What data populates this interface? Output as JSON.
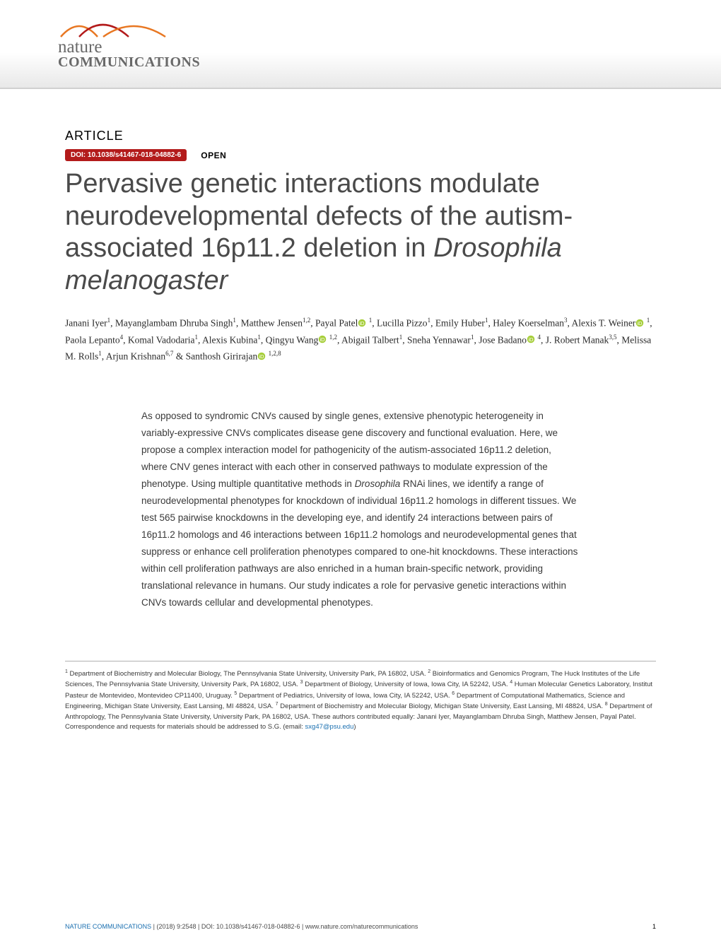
{
  "logo": {
    "line1": "nature",
    "line2": "COMMUNICATIONS"
  },
  "article_label": "ARTICLE",
  "doi_badge": "DOI: 10.1038/s41467-018-04882-6",
  "open_badge": "OPEN",
  "title_html": "Pervasive genetic interactions modulate neurodevelopmental defects of the autism-associated 16p11.2 deletion in <span class=\"italic\">Drosophila melanogaster</span>",
  "authors_html": "Janani Iyer<sup>1</sup>, Mayanglambam Dhruba Singh<sup>1</sup>, Matthew Jensen<sup>1,2</sup>, Payal Patel<svg class=\"orcid\" viewBox=\"0 0 16 16\"><circle cx=\"8\" cy=\"8\" r=\"7\" fill=\"#a6ce39\"/><text x=\"8\" y=\"12\" text-anchor=\"middle\" fill=\"#fff\" font-size=\"10\" font-family=\"Arial\">iD</text></svg> <sup>1</sup>, Lucilla Pizzo<sup>1</sup>, Emily Huber<sup>1</sup>, Haley Koerselman<sup>3</sup>, Alexis T. Weiner<svg class=\"orcid\" viewBox=\"0 0 16 16\"><circle cx=\"8\" cy=\"8\" r=\"7\" fill=\"#a6ce39\"/><text x=\"8\" y=\"12\" text-anchor=\"middle\" fill=\"#fff\" font-size=\"10\" font-family=\"Arial\">iD</text></svg> <sup>1</sup>, Paola Lepanto<sup>4</sup>, Komal Vadodaria<sup>1</sup>, Alexis Kubina<sup>1</sup>, Qingyu Wang<svg class=\"orcid\" viewBox=\"0 0 16 16\"><circle cx=\"8\" cy=\"8\" r=\"7\" fill=\"#a6ce39\"/><text x=\"8\" y=\"12\" text-anchor=\"middle\" fill=\"#fff\" font-size=\"10\" font-family=\"Arial\">iD</text></svg> <sup>1,2</sup>, Abigail Talbert<sup>1</sup>, Sneha Yennawar<sup>1</sup>, Jose Badano<svg class=\"orcid\" viewBox=\"0 0 16 16\"><circle cx=\"8\" cy=\"8\" r=\"7\" fill=\"#a6ce39\"/><text x=\"8\" y=\"12\" text-anchor=\"middle\" fill=\"#fff\" font-size=\"10\" font-family=\"Arial\">iD</text></svg> <sup>4</sup>, J. Robert Manak<sup>3,5</sup>, Melissa M. Rolls<sup>1</sup>, Arjun Krishnan<sup>6,7</sup> &amp; Santhosh Girirajan<svg class=\"orcid\" viewBox=\"0 0 16 16\"><circle cx=\"8\" cy=\"8\" r=\"7\" fill=\"#a6ce39\"/><text x=\"8\" y=\"12\" text-anchor=\"middle\" fill=\"#fff\" font-size=\"10\" font-family=\"Arial\">iD</text></svg> <sup>1,2,8</sup>",
  "abstract_html": "As opposed to syndromic CNVs caused by single genes, extensive phenotypic heterogeneity in variably-expressive CNVs complicates disease gene discovery and functional evaluation. Here, we propose a complex interaction model for pathogenicity of the autism-associated 16p11.2 deletion, where CNV genes interact with each other in conserved pathways to modulate expression of the phenotype. Using multiple quantitative methods in <span class=\"italic\">Drosophila</span> RNAi lines, we identify a range of neurodevelopmental phenotypes for knockdown of individual 16p11.2 homologs in different tissues. We test 565 pairwise knockdowns in the developing eye, and identify 24 interactions between pairs of 16p11.2 homologs and 46 interactions between 16p11.2 homologs and neurodevelopmental genes that suppress or enhance cell proliferation phenotypes compared to one-hit knockdowns. These interactions within cell proliferation pathways are also enriched in a human brain-specific network, providing translational relevance in humans. Our study indicates a role for pervasive genetic interactions within CNVs towards cellular and developmental phenotypes.",
  "affiliations_html": "<sup>1</sup> Department of Biochemistry and Molecular Biology, The Pennsylvania State University, University Park, PA 16802, USA. <sup>2</sup> Bioinformatics and Genomics Program, The Huck Institutes of the Life Sciences, The Pennsylvania State University, University Park, PA 16802, USA. <sup>3</sup> Department of Biology, University of Iowa, Iowa City, IA 52242, USA. <sup>4</sup> Human Molecular Genetics Laboratory, Institut Pasteur de Montevideo, Montevideo CP11400, Uruguay. <sup>5</sup> Department of Pediatrics, University of Iowa, Iowa City, IA 52242, USA. <sup>6</sup> Department of Computational Mathematics, Science and Engineering, Michigan State University, East Lansing, MI 48824, USA. <sup>7</sup> Department of Biochemistry and Molecular Biology, Michigan State University, East Lansing, MI 48824, USA. <sup>8</sup> Department of Anthropology, The Pennsylvania State University, University Park, PA 16802, USA. These authors contributed equally: Janani Iyer, Mayanglambam Dhruba Singh, Matthew Jensen, Payal Patel.  Correspondence and requests for materials should be addressed to S.G. (email: <span class=\"email\">sxg47@psu.edu</span>)",
  "footer": {
    "left_html": "<span class=\"journal\">NATURE COMMUNICATIONS</span> | (2018) 9:2548 | DOI: 10.1038/s41467-018-04882-6 | www.nature.com/naturecommunications",
    "pagenum": "1"
  },
  "colors": {
    "doi_bg": "#b31b1b",
    "logo_text": "#696969",
    "title_text": "#4a4a4a",
    "link": "#1a6fb0",
    "swoosh1": "#e87722",
    "swoosh2": "#b31b1b"
  }
}
